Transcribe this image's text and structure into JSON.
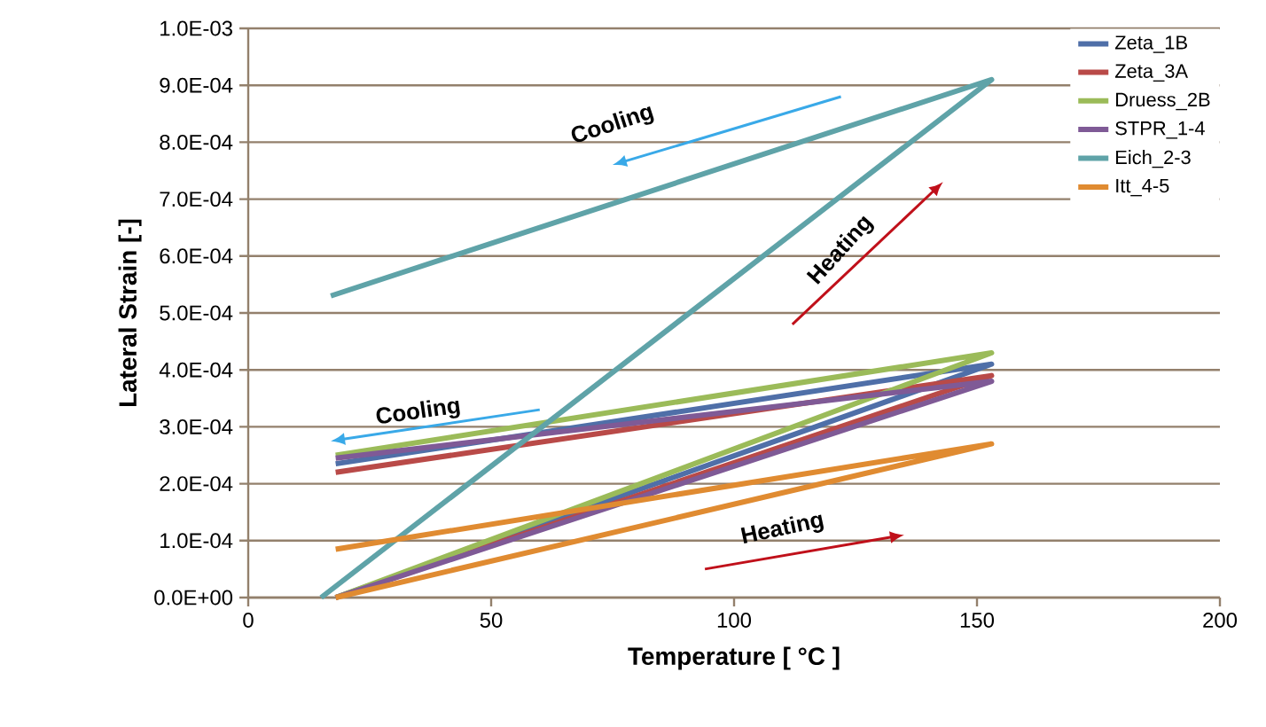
{
  "chart_data": {
    "type": "line",
    "xlabel": "Temperature [ °C ]",
    "ylabel": "Lateral Strain [-]",
    "xlim": [
      0,
      200
    ],
    "xticks": [
      0,
      50,
      100,
      150,
      200
    ],
    "ylim": [
      0,
      0.001
    ],
    "yticks": [
      {
        "value": 0,
        "label": "0.0E+00"
      },
      {
        "value": 0.0001,
        "label": "1.0E-04"
      },
      {
        "value": 0.0002,
        "label": "2.0E-04"
      },
      {
        "value": 0.0003,
        "label": "3.0E-04"
      },
      {
        "value": 0.0004,
        "label": "4.0E-04"
      },
      {
        "value": 0.0005,
        "label": "5.0E-04"
      },
      {
        "value": 0.0006,
        "label": "6.0E-04"
      },
      {
        "value": 0.0007,
        "label": "7.0E-04"
      },
      {
        "value": 0.0008,
        "label": "8.0E-04"
      },
      {
        "value": 0.0009,
        "label": "9.0E-04"
      },
      {
        "value": 0.001,
        "label": "1.0E-03"
      }
    ],
    "grid": "y",
    "legend": "top right",
    "marker": "none",
    "line_style": "solid",
    "series": [
      {
        "name": "Zeta_1B",
        "color": "#4f6fa8",
        "x": [
          18,
          153,
          18
        ],
        "values": [
          0,
          0.00041,
          0.000235
        ]
      },
      {
        "name": "Zeta_3A",
        "color": "#b94a48",
        "x": [
          18,
          153,
          18
        ],
        "values": [
          0,
          0.00039,
          0.00022
        ]
      },
      {
        "name": "Druess_2B",
        "color": "#9bbb59",
        "x": [
          18,
          153,
          18
        ],
        "values": [
          0,
          0.00043,
          0.00025
        ]
      },
      {
        "name": "STPR_1-4",
        "color": "#7f5a96",
        "x": [
          18,
          153,
          18
        ],
        "values": [
          0,
          0.00038,
          0.000245
        ]
      },
      {
        "name": "Eich_2-3",
        "color": "#5fa3a8",
        "x": [
          15,
          153,
          17
        ],
        "values": [
          0,
          0.00091,
          0.00053
        ]
      },
      {
        "name": "Itt_4-5",
        "color": "#e08b31",
        "x": [
          18,
          153,
          18
        ],
        "values": [
          0,
          0.00027,
          8.5e-05
        ]
      }
    ],
    "annotations": [
      "Cooling",
      "Heating",
      "Cooling",
      "Heating"
    ]
  }
}
